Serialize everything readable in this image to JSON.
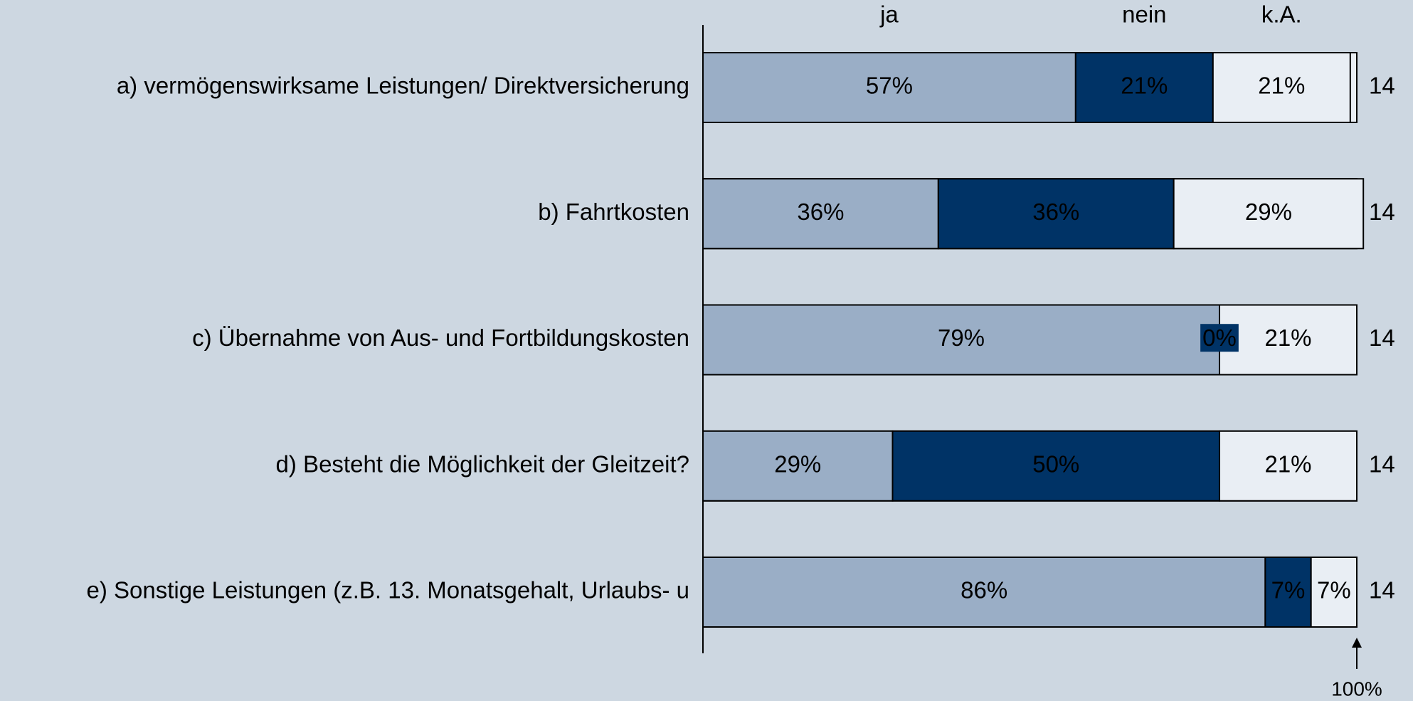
{
  "chart_data": {
    "type": "stacked_barh",
    "categories": [
      "a) vermögenswirksame Leistungen/ Direktversicherung",
      "b) Fahrtkosten",
      "c) Übernahme von Aus- und Fortbildungskosten",
      "d) Besteht die Möglichkeit der Gleitzeit?",
      "e) Sonstige Leistungen (z.B. 13. Monatsgehalt, Urlaubs- u"
    ],
    "series": [
      {
        "name": "ja",
        "color": "#9aaec6",
        "label_color": "#000000",
        "values": [
          57,
          36,
          79,
          29,
          86
        ],
        "value_labels": [
          "57%",
          "36%",
          "79%",
          "29%",
          "86%"
        ]
      },
      {
        "name": "nein",
        "color": "#003366",
        "label_color": "#ffffff",
        "values": [
          21,
          36,
          0,
          50,
          7
        ],
        "value_labels": [
          "21%",
          "36%",
          "0%",
          "50%",
          "7%"
        ]
      },
      {
        "name": "k.A.",
        "color": "#e9eef4",
        "label_color": "#000000",
        "values": [
          21,
          29,
          21,
          21,
          7
        ],
        "value_labels": [
          "21%",
          "29%",
          "21%",
          "21%",
          "7%"
        ]
      }
    ],
    "n_values": [
      14,
      14,
      14,
      14,
      14
    ],
    "xlim": [
      0,
      100
    ],
    "annotation": "100%"
  }
}
